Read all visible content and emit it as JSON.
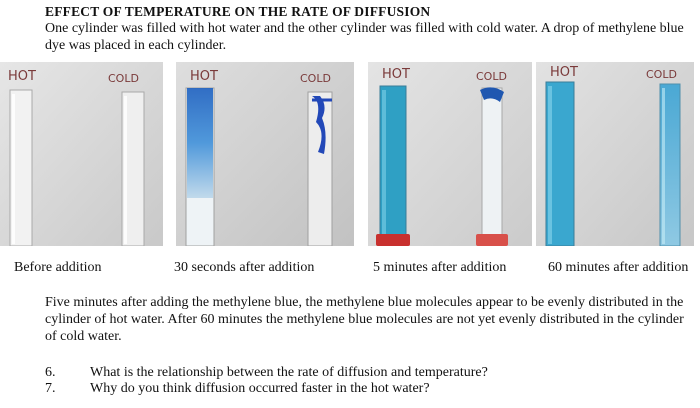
{
  "title": "EFFECT OF TEMPERATURE ON THE RATE OF DIFFUSION",
  "intro": "One cylinder was filled with hot water and the other cylinder was filled with cold water. A drop of methylene blue dye was placed in each cylinder.",
  "photos": [
    {
      "hot_label": "HOT",
      "cold_label": "COLD",
      "caption": "Before addition"
    },
    {
      "hot_label": "HOT",
      "cold_label": "COLD",
      "caption": "30 seconds after addition"
    },
    {
      "hot_label": "HOT",
      "cold_label": "COLD",
      "caption": "5 minutes after addition"
    },
    {
      "hot_label": "HOT",
      "cold_label": "COLD",
      "caption": "60 minutes after addition"
    }
  ],
  "observation": "Five minutes after adding the methylene blue, the methylene blue molecules appear to be evenly distributed in the cylinder of hot water. After 60 minutes the methylene blue molecules are not yet evenly distributed in the cylinder of cold water.",
  "questions": [
    {
      "number": "6.",
      "text": "What is the relationship between the rate of diffusion and temperature?"
    },
    {
      "number": "7.",
      "text": "Why do you think diffusion occurred faster in the hot water?"
    }
  ],
  "colors": {
    "dye": "#2f8fc8",
    "dye_dark": "#1f57b0",
    "backdrop": "#dcdcdc",
    "base_red": "#c8302e"
  }
}
